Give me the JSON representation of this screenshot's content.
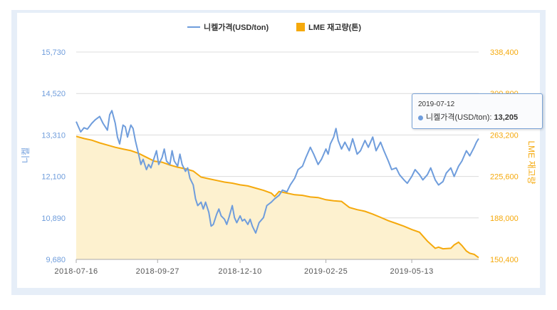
{
  "chart_data": {
    "type": "line",
    "title": "",
    "xlabel": "",
    "ylabel_left": "니켈",
    "ylabel_right": "LME 재고량",
    "x_ticks": [
      "2018-07-16",
      "2018-09-27",
      "2018-12-10",
      "2019-02-25",
      "2019-05-13"
    ],
    "y_left_ticks": [
      "9,680",
      "10,890",
      "12,100",
      "13,310",
      "14,520",
      "15,730"
    ],
    "y_right_ticks": [
      "150,400",
      "188,000",
      "225,600",
      "263,200",
      "300,800",
      "338,400"
    ],
    "y_left_range": [
      9680,
      15730
    ],
    "y_right_range": [
      150400,
      338400
    ],
    "x_range": [
      "2018-07-16",
      "2019-07-12"
    ],
    "grid": true,
    "legend_position": "top-center",
    "series": [
      {
        "name": "니켈가격(USD/ton)",
        "axis": "left",
        "color": "#6f9ddc",
        "points": [
          [
            "2018-07-16",
            13700
          ],
          [
            "2018-07-18",
            13550
          ],
          [
            "2018-07-20",
            13400
          ],
          [
            "2018-07-23",
            13520
          ],
          [
            "2018-07-26",
            13480
          ],
          [
            "2018-07-30",
            13650
          ],
          [
            "2018-08-02",
            13750
          ],
          [
            "2018-08-06",
            13850
          ],
          [
            "2018-08-09",
            13650
          ],
          [
            "2018-08-13",
            13450
          ],
          [
            "2018-08-15",
            13900
          ],
          [
            "2018-08-17",
            14020
          ],
          [
            "2018-08-20",
            13650
          ],
          [
            "2018-08-22",
            13250
          ],
          [
            "2018-08-24",
            13050
          ],
          [
            "2018-08-27",
            13600
          ],
          [
            "2018-08-29",
            13550
          ],
          [
            "2018-08-31",
            13250
          ],
          [
            "2018-09-03",
            13600
          ],
          [
            "2018-09-05",
            13500
          ],
          [
            "2018-09-07",
            13150
          ],
          [
            "2018-09-10",
            12750
          ],
          [
            "2018-09-12",
            12450
          ],
          [
            "2018-09-14",
            12600
          ],
          [
            "2018-09-17",
            12300
          ],
          [
            "2018-09-19",
            12450
          ],
          [
            "2018-09-21",
            12350
          ],
          [
            "2018-09-24",
            12650
          ],
          [
            "2018-09-26",
            12850
          ],
          [
            "2018-09-28",
            12450
          ],
          [
            "2018-10-01",
            12650
          ],
          [
            "2018-10-03",
            12900
          ],
          [
            "2018-10-05",
            12550
          ],
          [
            "2018-10-08",
            12450
          ],
          [
            "2018-10-10",
            12850
          ],
          [
            "2018-10-12",
            12550
          ],
          [
            "2018-10-15",
            12400
          ],
          [
            "2018-10-17",
            12750
          ],
          [
            "2018-10-19",
            12450
          ],
          [
            "2018-10-22",
            12250
          ],
          [
            "2018-10-24",
            12350
          ],
          [
            "2018-10-26",
            12050
          ],
          [
            "2018-10-29",
            11850
          ],
          [
            "2018-10-31",
            11450
          ],
          [
            "2018-11-02",
            11250
          ],
          [
            "2018-11-05",
            11350
          ],
          [
            "2018-11-07",
            11150
          ],
          [
            "2018-11-09",
            11350
          ],
          [
            "2018-11-12",
            11050
          ],
          [
            "2018-11-14",
            10650
          ],
          [
            "2018-11-16",
            10700
          ],
          [
            "2018-11-19",
            11000
          ],
          [
            "2018-11-21",
            11150
          ],
          [
            "2018-11-23",
            10950
          ],
          [
            "2018-11-26",
            10850
          ],
          [
            "2018-11-28",
            10700
          ],
          [
            "2018-11-30",
            10900
          ],
          [
            "2018-12-03",
            11250
          ],
          [
            "2018-12-05",
            10900
          ],
          [
            "2018-12-07",
            10750
          ],
          [
            "2018-12-10",
            10950
          ],
          [
            "2018-12-12",
            10800
          ],
          [
            "2018-12-14",
            10850
          ],
          [
            "2018-12-17",
            10700
          ],
          [
            "2018-12-19",
            10850
          ],
          [
            "2018-12-21",
            10650
          ],
          [
            "2018-12-24",
            10450
          ],
          [
            "2018-12-27",
            10750
          ],
          [
            "2018-12-31",
            10900
          ],
          [
            "2019-01-03",
            11250
          ],
          [
            "2019-01-07",
            11350
          ],
          [
            "2019-01-10",
            11450
          ],
          [
            "2019-01-14",
            11550
          ],
          [
            "2019-01-17",
            11700
          ],
          [
            "2019-01-21",
            11650
          ],
          [
            "2019-01-24",
            11850
          ],
          [
            "2019-01-28",
            12050
          ],
          [
            "2019-01-31",
            12300
          ],
          [
            "2019-02-04",
            12400
          ],
          [
            "2019-02-07",
            12650
          ],
          [
            "2019-02-11",
            12950
          ],
          [
            "2019-02-14",
            12750
          ],
          [
            "2019-02-18",
            12450
          ],
          [
            "2019-02-21",
            12600
          ],
          [
            "2019-02-25",
            12900
          ],
          [
            "2019-02-27",
            12750
          ],
          [
            "2019-03-01",
            13050
          ],
          [
            "2019-03-04",
            13250
          ],
          [
            "2019-03-06",
            13500
          ],
          [
            "2019-03-08",
            13150
          ],
          [
            "2019-03-11",
            12900
          ],
          [
            "2019-03-14",
            13100
          ],
          [
            "2019-03-18",
            12850
          ],
          [
            "2019-03-21",
            13200
          ],
          [
            "2019-03-25",
            12750
          ],
          [
            "2019-03-28",
            12850
          ],
          [
            "2019-04-01",
            13150
          ],
          [
            "2019-04-04",
            12950
          ],
          [
            "2019-04-08",
            13250
          ],
          [
            "2019-04-11",
            12850
          ],
          [
            "2019-04-15",
            13100
          ],
          [
            "2019-04-18",
            12850
          ],
          [
            "2019-04-22",
            12550
          ],
          [
            "2019-04-25",
            12300
          ],
          [
            "2019-04-29",
            12350
          ],
          [
            "2019-05-02",
            12150
          ],
          [
            "2019-05-06",
            12000
          ],
          [
            "2019-05-09",
            11900
          ],
          [
            "2019-05-13",
            12100
          ],
          [
            "2019-05-16",
            12300
          ],
          [
            "2019-05-20",
            12150
          ],
          [
            "2019-05-23",
            12000
          ],
          [
            "2019-05-27",
            12150
          ],
          [
            "2019-05-30",
            12350
          ],
          [
            "2019-06-03",
            12000
          ],
          [
            "2019-06-06",
            11850
          ],
          [
            "2019-06-10",
            11950
          ],
          [
            "2019-06-13",
            12200
          ],
          [
            "2019-06-17",
            12350
          ],
          [
            "2019-06-20",
            12100
          ],
          [
            "2019-06-24",
            12400
          ],
          [
            "2019-06-27",
            12550
          ],
          [
            "2019-07-01",
            12850
          ],
          [
            "2019-07-04",
            12700
          ],
          [
            "2019-07-08",
            12950
          ],
          [
            "2019-07-10",
            13100
          ],
          [
            "2019-07-12",
            13205
          ]
        ]
      },
      {
        "name": "LME 재고량(톤)",
        "axis": "right",
        "color": "#f5a90c",
        "fill": "#fdf1cf",
        "points": [
          [
            "2018-07-16",
            262000
          ],
          [
            "2018-07-23",
            260000
          ],
          [
            "2018-07-30",
            258500
          ],
          [
            "2018-08-06",
            256000
          ],
          [
            "2018-08-13",
            254000
          ],
          [
            "2018-08-20",
            252000
          ],
          [
            "2018-08-27",
            250500
          ],
          [
            "2018-09-03",
            249000
          ],
          [
            "2018-09-10",
            246500
          ],
          [
            "2018-09-17",
            243000
          ],
          [
            "2018-09-24",
            239500
          ],
          [
            "2018-10-01",
            238500
          ],
          [
            "2018-10-08",
            236000
          ],
          [
            "2018-10-15",
            234000
          ],
          [
            "2018-10-22",
            232500
          ],
          [
            "2018-10-29",
            230500
          ],
          [
            "2018-11-05",
            225000
          ],
          [
            "2018-11-12",
            223500
          ],
          [
            "2018-11-19",
            222000
          ],
          [
            "2018-11-26",
            220500
          ],
          [
            "2018-12-03",
            219500
          ],
          [
            "2018-12-10",
            218000
          ],
          [
            "2018-12-17",
            217000
          ],
          [
            "2018-12-24",
            215000
          ],
          [
            "2018-12-31",
            213000
          ],
          [
            "2019-01-07",
            210500
          ],
          [
            "2019-01-10",
            207500
          ],
          [
            "2019-01-14",
            212000
          ],
          [
            "2019-01-21",
            210500
          ],
          [
            "2019-01-28",
            209000
          ],
          [
            "2019-02-04",
            208500
          ],
          [
            "2019-02-11",
            207000
          ],
          [
            "2019-02-18",
            206500
          ],
          [
            "2019-02-25",
            204500
          ],
          [
            "2019-03-04",
            203500
          ],
          [
            "2019-03-11",
            203000
          ],
          [
            "2019-03-18",
            197500
          ],
          [
            "2019-03-25",
            195500
          ],
          [
            "2019-04-01",
            194000
          ],
          [
            "2019-04-08",
            191500
          ],
          [
            "2019-04-15",
            188500
          ],
          [
            "2019-04-22",
            185500
          ],
          [
            "2019-04-29",
            183000
          ],
          [
            "2019-05-06",
            180500
          ],
          [
            "2019-05-13",
            177500
          ],
          [
            "2019-05-20",
            175000
          ],
          [
            "2019-05-27",
            167000
          ],
          [
            "2019-06-03",
            160500
          ],
          [
            "2019-06-06",
            161500
          ],
          [
            "2019-06-10",
            160000
          ],
          [
            "2019-06-17",
            160500
          ],
          [
            "2019-06-20",
            163500
          ],
          [
            "2019-06-24",
            166000
          ],
          [
            "2019-06-27",
            163000
          ],
          [
            "2019-07-01",
            158000
          ],
          [
            "2019-07-04",
            156000
          ],
          [
            "2019-07-08",
            155000
          ],
          [
            "2019-07-12",
            152000
          ]
        ]
      }
    ],
    "tooltip": {
      "date": "2019-07-12",
      "label": "니켈가격(USD/ton):",
      "value": "13,205"
    }
  }
}
